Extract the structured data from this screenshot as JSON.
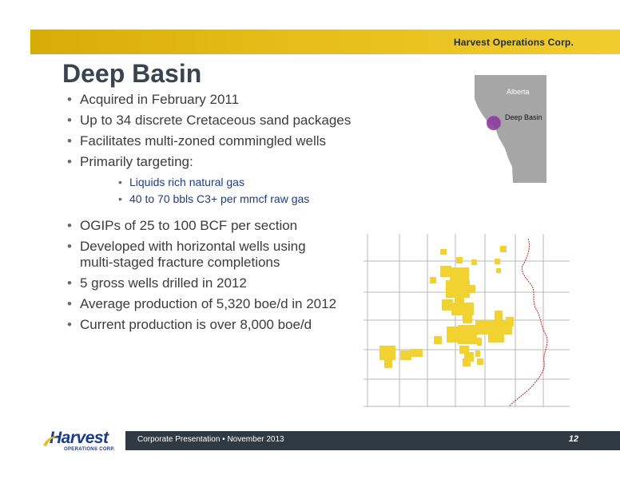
{
  "header": {
    "company": "Harvest Operations Corp."
  },
  "title": "Deep Basin",
  "bullets": [
    "Acquired in February 2011",
    "Up to 34 discrete Cretaceous sand packages",
    "Facilitates multi-zoned commingled wells",
    "Primarily targeting:"
  ],
  "sub_bullets": [
    "Liquids rich natural gas",
    "40 to 70 bbls C3+ per mmcf raw gas"
  ],
  "bullets2": [
    "OGIPs of 25 to 100 BCF per section",
    "Developed with horizontal wells using multi-staged fracture completions",
    "5 gross wells drilled in 2012",
    "Average production of 5,320 boe/d in 2012",
    "Current production is over 8,000 boe/d"
  ],
  "map": {
    "province": "Alberta",
    "region": "Deep Basin"
  },
  "footer": {
    "text": "Corporate Presentation • November 2013",
    "page": "12"
  },
  "logo": {
    "word": "Harvest",
    "sub": "OPERATIONS CORP."
  },
  "colors": {
    "band": "#e6bd1a",
    "footer": "#2f3a43",
    "title": "#39444f",
    "sub_text": "#1c3c8c",
    "land": "#f1d230"
  }
}
